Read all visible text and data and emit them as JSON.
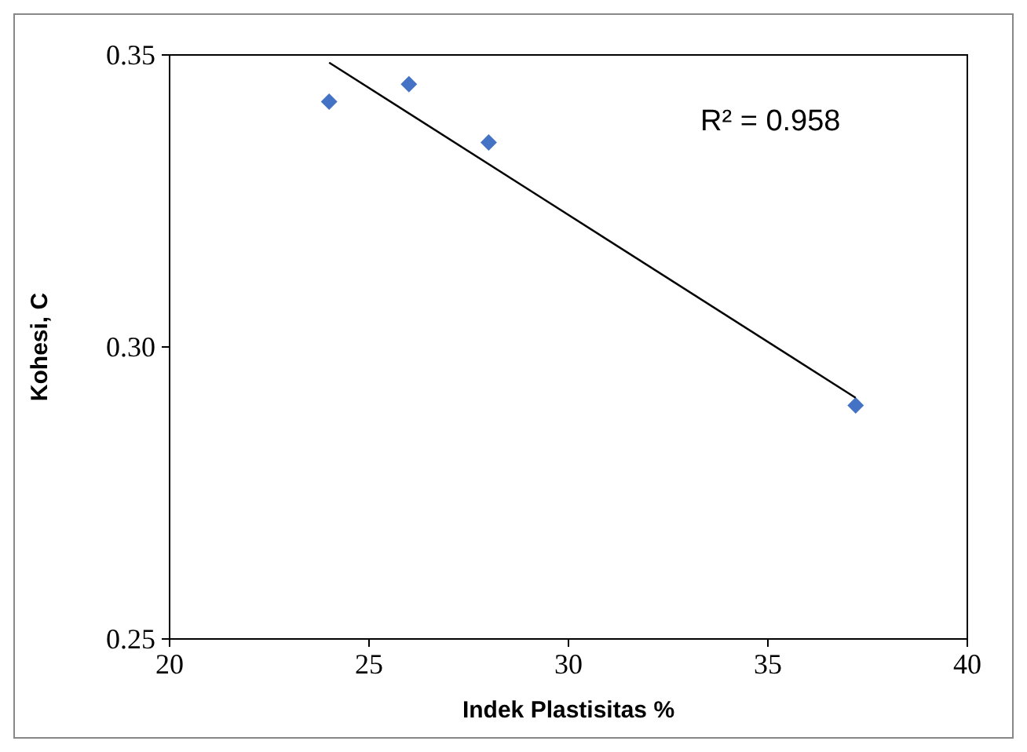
{
  "chart_data": {
    "type": "scatter",
    "xlabel": "Indek Plastisitas  %",
    "ylabel": "Kohesi, C",
    "xlim": [
      20,
      40
    ],
    "xticks": [
      20,
      25,
      30,
      35,
      40
    ],
    "ylim": [
      0.25,
      0.35
    ],
    "yticks": [
      {
        "value": 0.25,
        "label": "0.25"
      },
      {
        "value": 0.3,
        "label": "0.30"
      },
      {
        "value": 0.35,
        "label": "0.35"
      }
    ],
    "grid": false,
    "series": [
      {
        "marker": "diamond",
        "color": "#4472c4",
        "x": [
          24.0,
          26.0,
          28.0,
          37.2
        ],
        "values": [
          0.342,
          0.345,
          0.335,
          0.29
        ]
      },
      {
        "type": "line",
        "color": "#000000",
        "x": [
          24.0,
          37.2
        ],
        "values": [
          0.3487,
          0.2913
        ]
      }
    ],
    "annotations": [
      "R² = 0.958"
    ]
  }
}
